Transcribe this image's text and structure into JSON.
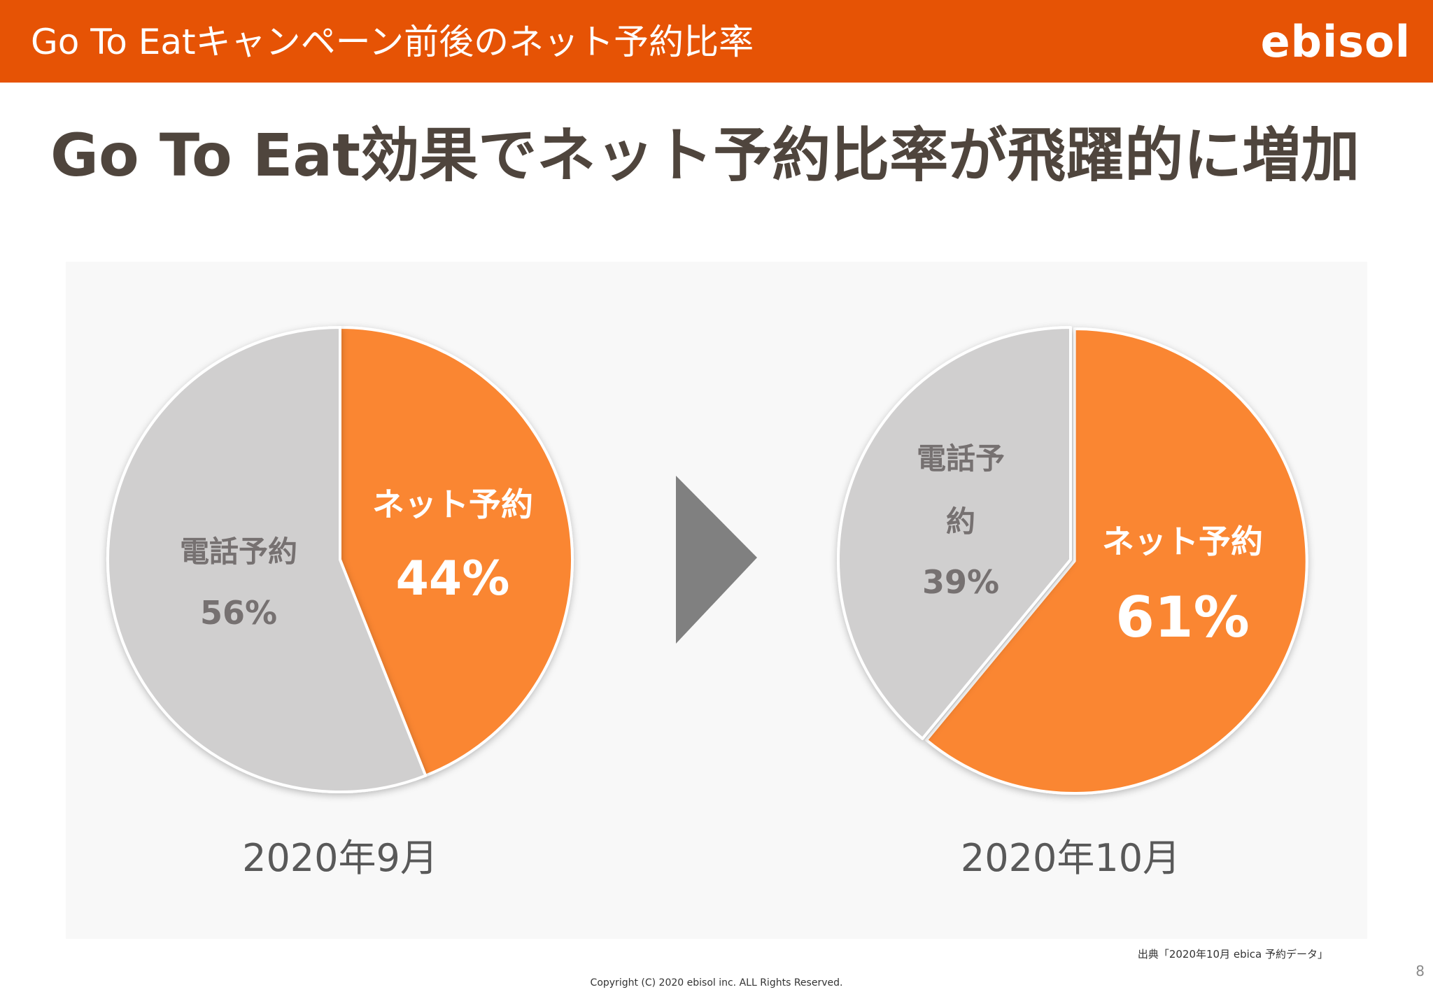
{
  "header": {
    "title": "Go To Eatキャンペーン前後のネット予約比率",
    "brand": "ebisol"
  },
  "headline": "Go To Eat効果でネット予約比率が飛躍的に増加",
  "chart_data": [
    {
      "type": "pie",
      "title": "2020年9月",
      "slices": [
        {
          "label": "ネット予約",
          "value": 44,
          "value_label": "44%",
          "color": "#fa8632"
        },
        {
          "label": "電話予約",
          "value": 56,
          "value_label": "56%",
          "color": "#d0cfcf"
        }
      ]
    },
    {
      "type": "pie",
      "title": "2020年10月",
      "slices": [
        {
          "label": "ネット予約",
          "value": 61,
          "value_label": "61%",
          "color": "#fa8632"
        },
        {
          "label": "電話予\n約",
          "value": 39,
          "value_label": "39%",
          "color": "#d0cfcf"
        }
      ]
    }
  ],
  "arrow_icon": "triangle-right-icon",
  "arrow_color": "#808080",
  "footer": {
    "source": "出典「2020年10月 ebica 予約データ」",
    "copyright": "Copyright (C) 2020 ebisol inc. ALL Rights Reserved.",
    "page_number": "8"
  }
}
